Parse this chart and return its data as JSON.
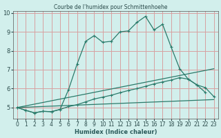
{
  "title": "Courbe de l'humidex pour Schmittenhoehe",
  "xlabel": "Humidex (Indice chaleur)",
  "xlim": [
    -0.5,
    23.5
  ],
  "ylim": [
    4.4,
    10.1
  ],
  "yticks": [
    5,
    6,
    7,
    8,
    9,
    10
  ],
  "xticks": [
    0,
    1,
    2,
    3,
    4,
    5,
    6,
    7,
    8,
    9,
    10,
    11,
    12,
    13,
    14,
    15,
    16,
    17,
    18,
    19,
    20,
    21,
    22,
    23
  ],
  "bg_color": "#d2efec",
  "grid_color": "#d8a0a0",
  "line_color": "#2a7a6a",
  "line1_x": [
    0,
    1,
    2,
    3,
    4,
    5,
    6,
    7,
    8,
    9,
    10,
    11,
    12,
    13,
    14,
    15,
    16,
    17,
    18,
    19,
    20,
    21,
    22
  ],
  "line1_y": [
    5.0,
    4.85,
    4.72,
    4.8,
    4.78,
    4.9,
    5.95,
    7.3,
    8.5,
    8.8,
    8.45,
    8.5,
    9.0,
    9.05,
    9.5,
    9.82,
    9.1,
    9.4,
    8.2,
    7.05,
    6.5,
    6.2,
    5.8
  ],
  "line2_x": [
    0,
    1,
    2,
    3,
    4,
    5,
    6,
    7,
    8,
    9,
    10,
    11,
    12,
    13,
    14,
    15,
    16,
    17,
    18,
    19,
    20,
    21,
    22,
    23
  ],
  "line2_y": [
    5.0,
    4.85,
    4.72,
    4.8,
    4.78,
    4.9,
    5.05,
    5.15,
    5.3,
    5.45,
    5.55,
    5.65,
    5.78,
    5.9,
    6.0,
    6.12,
    6.25,
    6.35,
    6.45,
    6.58,
    6.5,
    6.2,
    6.05,
    5.58
  ],
  "line3_x": [
    0,
    23
  ],
  "line3_y": [
    5.0,
    5.42
  ],
  "line4_x": [
    0,
    23
  ],
  "line4_y": [
    5.0,
    7.05
  ]
}
